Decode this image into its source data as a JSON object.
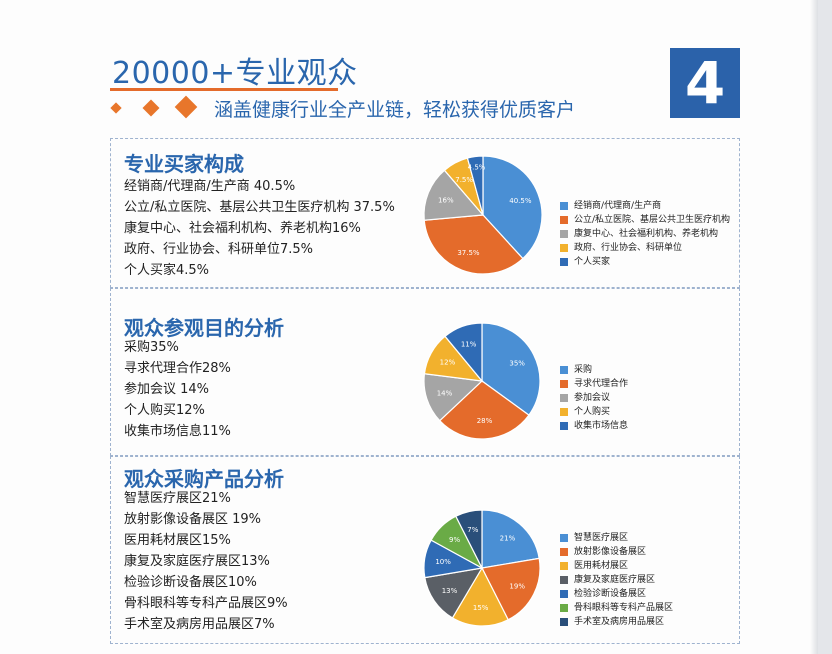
{
  "header": {
    "title": "20000+专业观众",
    "subtitle": "涵盖健康行业全产业链，轻松获得优质客户",
    "badge": "4",
    "accent_color": "#e8762b",
    "brand_color": "#2a66ad"
  },
  "sections": [
    {
      "title": "专业买家构成",
      "lines": [
        "经销商/代理商/生产商 40.5%",
        "公立/私立医院、基层公共卫生医疗机构 37.5%",
        "康复中心、社会福利机构、养老机构16%",
        "政府、行业协会、科研单位7.5%",
        "个人买家4.5%"
      ]
    },
    {
      "title": "观众参观目的分析",
      "lines": [
        "采购35%",
        "寻求代理合作28%",
        "参加会议 14%",
        "个人购买12%",
        "收集市场信息11%"
      ]
    },
    {
      "title": "观众采购产品分析",
      "lines": [
        "智慧医疗展区21%",
        "放射影像设备展区 19%",
        "医用耗材展区15%",
        "康复及家庭医疗展区13%",
        "检验诊断设备展区10%",
        "骨科眼科等专科产品展区9%",
        "手术室及病房用品展区7%"
      ]
    }
  ],
  "chart_data": [
    {
      "type": "pie",
      "categories": [
        "经销商/代理商/生产商",
        "公立/私立医院、基层公共卫生医疗机构",
        "康复中心、社会福利机构、养老机构",
        "政府、行业协会、科研单位",
        "个人买家"
      ],
      "values": [
        40.5,
        37.5,
        16,
        7.5,
        4.5
      ],
      "labels": [
        "40.5%",
        "37.5%",
        "16%",
        "7.5%",
        "4.5%"
      ],
      "colors": [
        "#4a8fd4",
        "#e46b2b",
        "#a5a5a5",
        "#f2b12d",
        "#2f6bb5"
      ],
      "legend": "right"
    },
    {
      "type": "pie",
      "categories": [
        "采购",
        "寻求代理合作",
        "参加会议",
        "个人购买",
        "收集市场信息"
      ],
      "values": [
        35,
        28,
        14,
        12,
        11
      ],
      "labels": [
        "35%",
        "28%",
        "14%",
        "12%",
        "11%"
      ],
      "colors": [
        "#4a8fd4",
        "#e46b2b",
        "#a5a5a5",
        "#f2b12d",
        "#2f6bb5"
      ],
      "legend": "right"
    },
    {
      "type": "pie",
      "categories": [
        "智慧医疗展区",
        "放射影像设备展区",
        "医用耗材展区",
        "康复及家庭医疗展区",
        "检验诊断设备展区",
        "骨科眼科等专科产品展区",
        "手术室及病房用品展区"
      ],
      "values": [
        21,
        19,
        15,
        13,
        10,
        9,
        7
      ],
      "labels": [
        "21%",
        "19%",
        "15%",
        "13%",
        "10%",
        "9%",
        "7%"
      ],
      "colors": [
        "#4a8fd4",
        "#e46b2b",
        "#f2b12d",
        "#5a5f66",
        "#2f6bb5",
        "#6aab46",
        "#2a4f7a"
      ],
      "legend": "right"
    }
  ]
}
